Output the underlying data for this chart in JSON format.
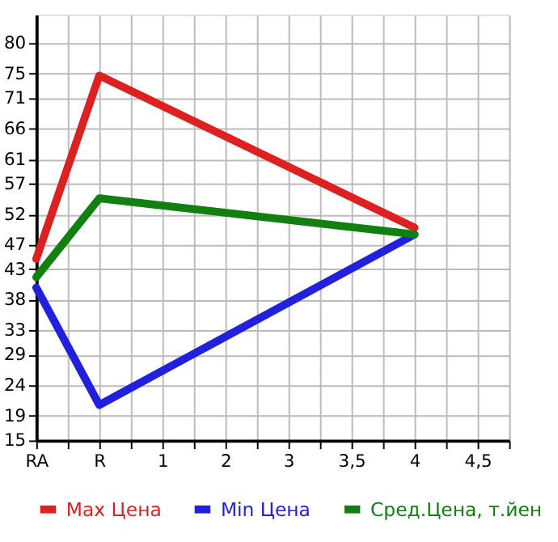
{
  "chart_data": {
    "type": "line",
    "categories": [
      "RA",
      null,
      "R",
      null,
      "1",
      null,
      "2",
      null,
      "3",
      null,
      "3,5",
      null,
      "4",
      null,
      "4,5",
      null
    ],
    "series": [
      {
        "name": "Max Цена",
        "color": "#dd2020",
        "values": [
          44.7,
          null,
          74.7,
          null,
          null,
          null,
          null,
          null,
          null,
          null,
          null,
          null,
          49.8,
          null,
          null,
          null
        ]
      },
      {
        "name": "Min Цена",
        "color": "#2020dd",
        "values": [
          40.0,
          null,
          20.8,
          null,
          null,
          null,
          null,
          null,
          null,
          null,
          null,
          null,
          48.7,
          null,
          null,
          null
        ]
      },
      {
        "name": "Сред.Цена, т.йен",
        "color": "#118011",
        "values": [
          41.7,
          null,
          54.6,
          null,
          null,
          null,
          null,
          null,
          null,
          null,
          null,
          null,
          48.7,
          null,
          null,
          null
        ]
      }
    ],
    "ylim": [
      15,
      84.64
    ],
    "yticks": [
      15,
      19,
      24,
      29,
      33,
      38,
      43,
      47,
      52,
      57,
      61,
      66,
      71,
      75,
      80
    ],
    "grid": true,
    "legend": "bottom",
    "marker": "none",
    "line_style": "solid"
  }
}
